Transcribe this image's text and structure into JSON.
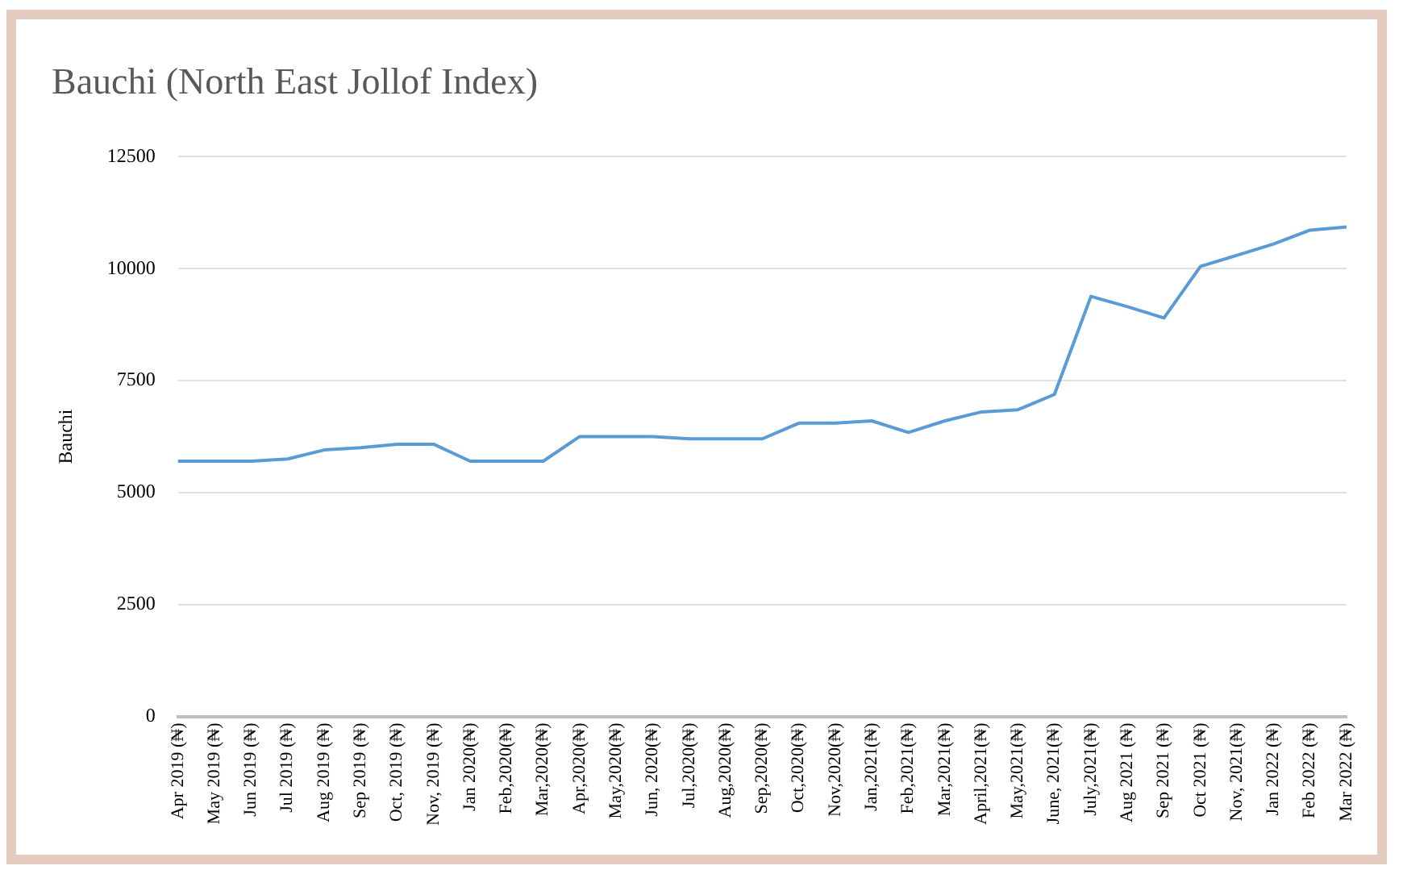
{
  "chart_data": {
    "type": "line",
    "title": "Bauchi (North East Jollof Index)",
    "ylabel": "Bauchi",
    "categories": [
      "Apr 2019 (₦)",
      "May 2019 (₦)",
      "Jun 2019 (₦)",
      "Jul 2019 (₦)",
      "Aug 2019 (₦)",
      "Sep 2019 (₦)",
      "Oct, 2019 (₦)",
      "Nov, 2019 (₦)",
      "Jan 2020(₦)",
      "Feb,2020(₦)",
      "Mar,2020(₦)",
      "Apr,2020(₦)",
      "May,2020(₦)",
      "Jun, 2020(₦)",
      "Jul,2020(₦)",
      "Aug,2020(₦)",
      "Sep,2020(₦)",
      "Oct,2020(₦)",
      "Nov,2020(₦)",
      "Jan,2021(₦)",
      "Feb,2021(₦)",
      "Mar,2021(₦)",
      "April,2021(₦)",
      "May,2021(₦)",
      "June, 2021(₦)",
      "July,2021(₦)",
      "Aug 2021 (₦)",
      "Sep 2021 (₦)",
      "Oct 2021 (₦)",
      "Nov, 2021(₦)",
      "Jan 2022 (₦)",
      "Feb 2022 (₦)",
      "Mar 2022 (₦)"
    ],
    "series": [
      {
        "color": "#5b9bd5",
        "values": [
          5700,
          5700,
          5700,
          5750,
          5950,
          6000,
          6080,
          6080,
          5700,
          5700,
          5700,
          6250,
          6250,
          6250,
          6200,
          6200,
          6200,
          6550,
          6550,
          6600,
          6340,
          6600,
          6800,
          6850,
          7190,
          9380,
          9150,
          8900,
          10050,
          10300,
          10550,
          10860,
          10930
        ]
      }
    ],
    "ylim": [
      0,
      12500
    ],
    "yticks": [
      0,
      2500,
      5000,
      7500,
      10000,
      12500
    ],
    "grid": "y",
    "legend": false,
    "marker": "none",
    "line_style": "solid"
  }
}
